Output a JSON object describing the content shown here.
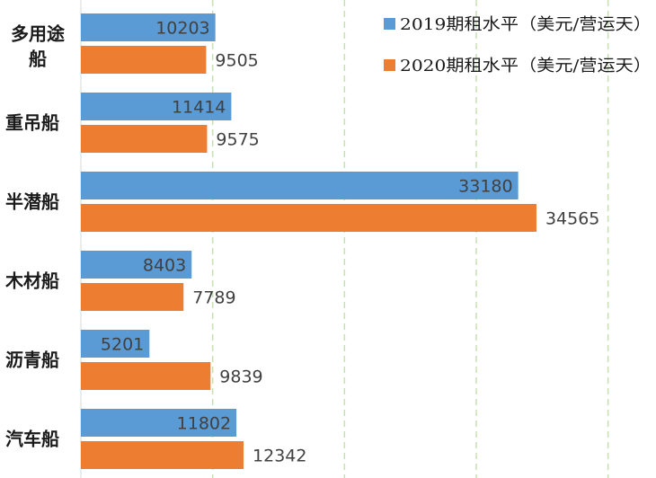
{
  "chart_data": {
    "type": "bar",
    "orientation": "horizontal",
    "title": "",
    "xlabel": "",
    "ylabel": "",
    "categories": [
      "多用途船",
      "重吊船",
      "半潜船",
      "木材船",
      "沥青船",
      "汽车船"
    ],
    "series": [
      {
        "name": "2019期租水平（美元/营运天）",
        "color": "#5b9bd5",
        "values": [
          10203,
          11414,
          33180,
          8403,
          5201,
          11802
        ]
      },
      {
        "name": "2020期租水平（美元/营运天）",
        "color": "#ed7d31",
        "values": [
          9505,
          9575,
          34565,
          7789,
          9839,
          12342
        ]
      }
    ],
    "xlim": [
      0,
      40000
    ],
    "grid": {
      "vertical": true,
      "style": "dashed",
      "color": "#c6e0b4"
    },
    "legend_position": "top-right"
  }
}
